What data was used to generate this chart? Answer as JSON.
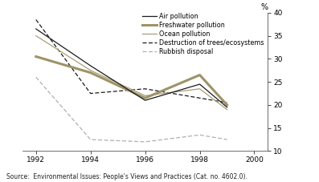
{
  "title": "",
  "ylabel": "%",
  "source": "Source:  Environmental Issues: People's Views and Practices (Cat. no. 4602.0).",
  "years": [
    1992,
    1994,
    1996,
    1998,
    1999
  ],
  "air_pollution": [
    36.5,
    28.5,
    21.0,
    24.5,
    19.5
  ],
  "freshwater_pollution": [
    30.5,
    27.0,
    21.5,
    26.5,
    20.0
  ],
  "ocean_pollution": [
    35.0,
    27.5,
    22.0,
    23.5,
    19.0
  ],
  "destruction_trees": [
    38.5,
    22.5,
    23.5,
    21.5,
    20.5
  ],
  "rubbish_disposal": [
    26.0,
    12.5,
    12.0,
    13.5,
    12.5
  ],
  "color_black": "#1a1a1a",
  "color_freshwater": "#9e9268",
  "color_ocean": "#a89e78",
  "color_dashed_black": "#1a1a1a",
  "color_dashed_gray": "#b0b0b0",
  "ylim": [
    10,
    40
  ],
  "yticks": [
    10,
    15,
    20,
    25,
    30,
    35,
    40
  ],
  "xticks": [
    1992,
    1994,
    1996,
    1998,
    2000
  ],
  "xlim": [
    1991.5,
    2000.5
  ]
}
